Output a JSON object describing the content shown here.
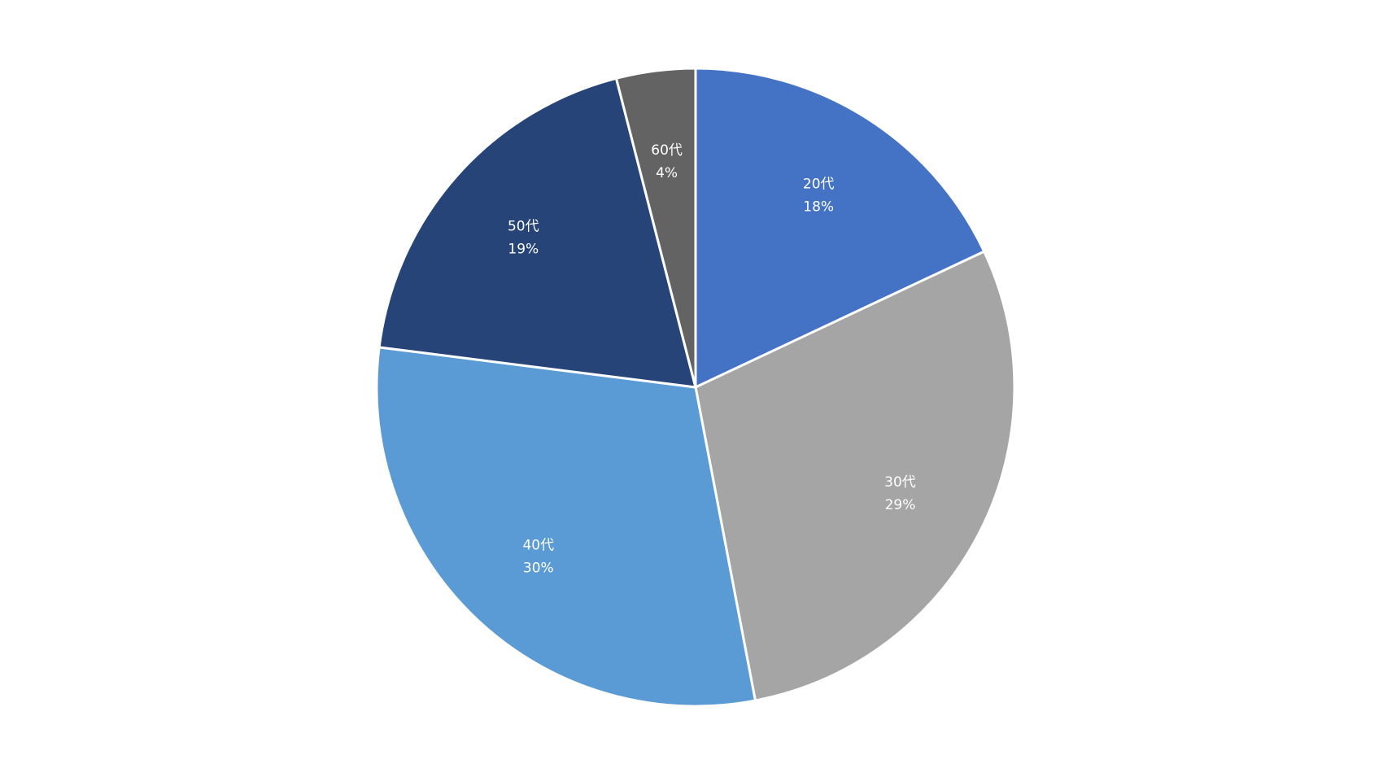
{
  "chart_data": {
    "type": "pie",
    "title": "",
    "start_angle_deg": 0,
    "direction": "clockwise",
    "legend": "none",
    "slices": [
      {
        "category": "20代",
        "value": 18,
        "label": "18%",
        "color": "#4472C4"
      },
      {
        "category": "30代",
        "value": 29,
        "label": "29%",
        "color": "#A5A5A5"
      },
      {
        "category": "40代",
        "value": 30,
        "label": "30%",
        "color": "#5B9BD5"
      },
      {
        "category": "50代",
        "value": 19,
        "label": "19%",
        "color": "#264478"
      },
      {
        "category": "60代",
        "value": 4,
        "label": "4%",
        "color": "#636363"
      }
    ]
  }
}
